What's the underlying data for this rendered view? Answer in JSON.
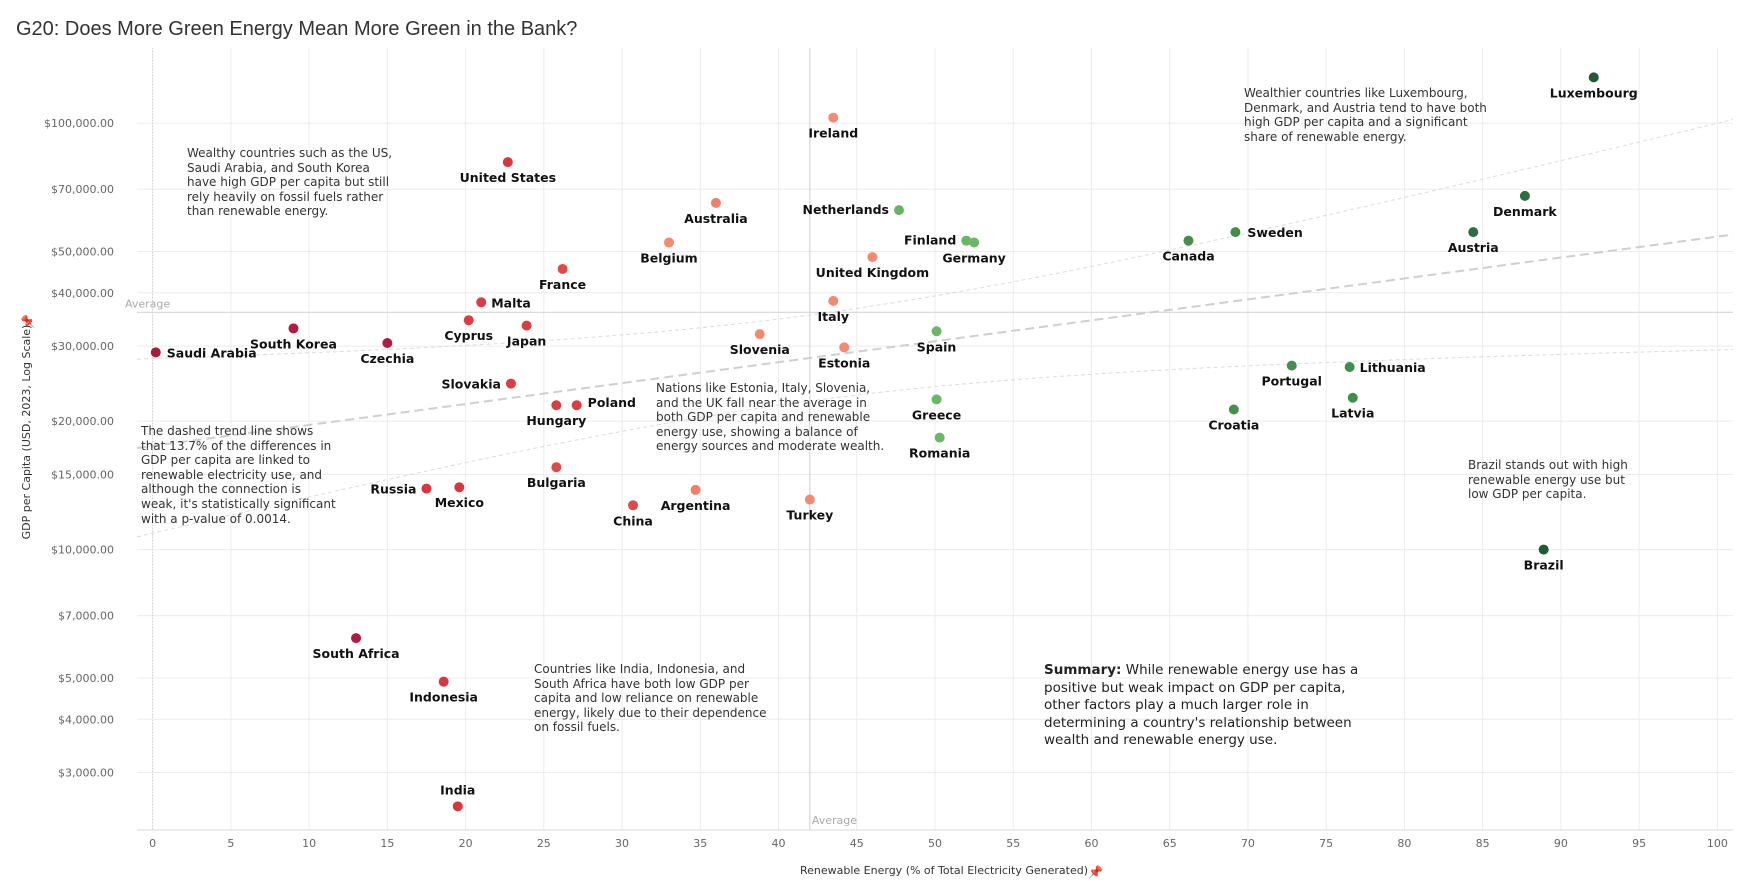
{
  "title": "G20: Does More Green Energy Mean More Green in the Bank?",
  "chart_data": {
    "type": "scatter",
    "title": "G20: Does More Green Energy Mean More Green in the Bank?",
    "xlabel": "Renewable Energy (% of Total Electricity Generated)",
    "ylabel": "GDP per Capita (USD, 2023, Log Scale)",
    "x_scale": "linear",
    "y_scale": "log",
    "xlim": [
      -1,
      101
    ],
    "ylim": [
      2200,
      150000
    ],
    "x_ticks": [
      0,
      5,
      10,
      15,
      20,
      25,
      30,
      35,
      40,
      45,
      50,
      55,
      60,
      65,
      70,
      75,
      80,
      85,
      90,
      95,
      100
    ],
    "y_ticks": [
      3000,
      4000,
      5000,
      7000,
      10000,
      15000,
      20000,
      30000,
      40000,
      50000,
      70000,
      100000
    ],
    "y_tick_labels": [
      "$3,000.00",
      "$4,000.00",
      "$5,000.00",
      "$7,000.00",
      "$10,000.00",
      "$15,000.00",
      "$20,000.00",
      "$30,000.00",
      "$40,000.00",
      "$50,000.00",
      "$70,000.00",
      "$100,000.00"
    ],
    "grid": true,
    "reference_lines": {
      "x_average": {
        "value": 42.0,
        "label": "Average"
      },
      "y_average": {
        "value": 36000,
        "label": "Average"
      }
    },
    "trend_line": {
      "type": "log-linear",
      "r_squared": 0.137,
      "p_value": 0.0014,
      "style": "dashed",
      "with_confidence_bands": true
    },
    "color_scale": {
      "low": "#a8193e",
      "mid": "#f08a6c",
      "high": "#1b5e35"
    },
    "points": [
      {
        "country": "Luxembourg",
        "x": 92.1,
        "y": 128000,
        "color": "#1f5c36"
      },
      {
        "country": "Ireland",
        "x": 43.5,
        "y": 103000,
        "color": "#f48a70"
      },
      {
        "country": "United States",
        "x": 22.7,
        "y": 81000,
        "color": "#d8353f"
      },
      {
        "country": "Denmark",
        "x": 87.7,
        "y": 67500,
        "color": "#2b6e3f"
      },
      {
        "country": "Australia",
        "x": 36.0,
        "y": 65000,
        "color": "#f07f68"
      },
      {
        "country": "Netherlands",
        "x": 47.7,
        "y": 62500,
        "color": "#69b464"
      },
      {
        "country": "Sweden",
        "x": 69.2,
        "y": 55500,
        "color": "#3f8e4b"
      },
      {
        "country": "Austria",
        "x": 84.4,
        "y": 55500,
        "color": "#2b6e3f"
      },
      {
        "country": "Finland",
        "x": 52.0,
        "y": 53000,
        "color": "#6ab765"
      },
      {
        "country": "Germany",
        "x": 52.5,
        "y": 52500,
        "color": "#6ab765"
      },
      {
        "country": "Canada",
        "x": 66.2,
        "y": 53000,
        "color": "#478f4d"
      },
      {
        "country": "Belgium",
        "x": 33.0,
        "y": 52500,
        "color": "#f58a6e"
      },
      {
        "country": "United Kingdom",
        "x": 46.0,
        "y": 48500,
        "color": "#f58a70"
      },
      {
        "country": "France",
        "x": 26.2,
        "y": 45500,
        "color": "#de4a46"
      },
      {
        "country": "Italy",
        "x": 43.5,
        "y": 38300,
        "color": "#f48a70"
      },
      {
        "country": "Malta",
        "x": 21.0,
        "y": 38000,
        "color": "#db3d42"
      },
      {
        "country": "Cyprus",
        "x": 20.2,
        "y": 34500,
        "color": "#db3d42"
      },
      {
        "country": "Japan",
        "x": 23.9,
        "y": 33500,
        "color": "#db3d42"
      },
      {
        "country": "South Korea",
        "x": 9.0,
        "y": 33000,
        "color": "#b31a40"
      },
      {
        "country": "Slovenia",
        "x": 38.8,
        "y": 32000,
        "color": "#f58a6e"
      },
      {
        "country": "Spain",
        "x": 50.1,
        "y": 32500,
        "color": "#6ab765"
      },
      {
        "country": "Czechia",
        "x": 15.0,
        "y": 30500,
        "color": "#b31a40"
      },
      {
        "country": "Estonia",
        "x": 44.2,
        "y": 29800,
        "color": "#f58a70"
      },
      {
        "country": "Saudi Arabia",
        "x": 0.2,
        "y": 29000,
        "color": "#a8193e"
      },
      {
        "country": "Lithuania",
        "x": 76.5,
        "y": 26800,
        "color": "#3f8e4b"
      },
      {
        "country": "Portugal",
        "x": 72.8,
        "y": 27000,
        "color": "#478f4d"
      },
      {
        "country": "Slovakia",
        "x": 22.9,
        "y": 24500,
        "color": "#db3d42"
      },
      {
        "country": "Latvia",
        "x": 76.7,
        "y": 22700,
        "color": "#3f8e4b"
      },
      {
        "country": "Greece",
        "x": 50.1,
        "y": 22500,
        "color": "#6ab765"
      },
      {
        "country": "Poland",
        "x": 27.1,
        "y": 21800,
        "color": "#db3d42"
      },
      {
        "country": "Hungary",
        "x": 25.8,
        "y": 21800,
        "color": "#db3d42"
      },
      {
        "country": "Croatia",
        "x": 69.1,
        "y": 21300,
        "color": "#478f4d"
      },
      {
        "country": "Romania",
        "x": 50.3,
        "y": 18300,
        "color": "#6ab765"
      },
      {
        "country": "Bulgaria",
        "x": 25.8,
        "y": 15600,
        "color": "#de4a46"
      },
      {
        "country": "Russia",
        "x": 17.5,
        "y": 13900,
        "color": "#d8353f"
      },
      {
        "country": "Mexico",
        "x": 19.6,
        "y": 14000,
        "color": "#d8353f"
      },
      {
        "country": "Argentina",
        "x": 34.7,
        "y": 13800,
        "color": "#f07f68"
      },
      {
        "country": "Turkey",
        "x": 42.0,
        "y": 13100,
        "color": "#f58a70"
      },
      {
        "country": "China",
        "x": 30.7,
        "y": 12700,
        "color": "#de4a46"
      },
      {
        "country": "Brazil",
        "x": 88.9,
        "y": 10000,
        "color": "#1f5c36"
      },
      {
        "country": "South Africa",
        "x": 13.0,
        "y": 6200,
        "color": "#b31a40"
      },
      {
        "country": "Indonesia",
        "x": 18.6,
        "y": 4900,
        "color": "#d8353f"
      },
      {
        "country": "India",
        "x": 19.5,
        "y": 2500,
        "color": "#d8353f"
      }
    ]
  },
  "annotations": [
    {
      "text": "Wealthier countries like Luxembourg,\nDenmark, and Austria tend to have both\nhigh GDP per capita and a significant\nshare of renewable energy."
    },
    {
      "text": "Wealthy countries such as the US,\nSaudi Arabia, and South Korea\nhave high GDP per capita but still\nrely heavily on fossil fuels rather\nthan renewable energy."
    },
    {
      "text": "The dashed trend line shows\nthat 13.7% of the differences in\nGDP per capita are linked to\nrenewable electricity use, and\nalthough the connection is\nweak, it's statistically significant\nwith a p-value of 0.0014."
    },
    {
      "text": "Nations like Estonia, Italy, Slovenia,\nand the UK fall near the average in\nboth GDP per capita and renewable\nenergy use, showing a balance of\nenergy sources and moderate wealth."
    },
    {
      "text": "Brazil stands out with high\nrenewable energy use but\nlow GDP per capita."
    },
    {
      "text": "Countries like India, Indonesia, and\nSouth Africa have both low GDP per\ncapita and low reliance on renewable\nenergy, likely due to their dependence\non fossil fuels."
    }
  ],
  "summary": {
    "lead": "Summary:",
    "text": " While renewable energy use has a\npositive but weak impact on GDP per capita,\nother factors play a much larger role in\ndetermining a country's relationship between\nwealth and renewable energy use."
  },
  "icons": {
    "axis_pin": "pin-icon"
  }
}
